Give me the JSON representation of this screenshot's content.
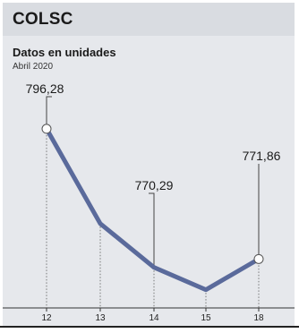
{
  "header": {
    "title": "COLSC"
  },
  "chart_data": {
    "type": "line",
    "title": "Datos en unidades",
    "subtitle": "Abril 2020",
    "xlabel": "",
    "ylabel": "",
    "categories": [
      "12",
      "13",
      "14",
      "15",
      "18"
    ],
    "series": [
      {
        "values": [
          796.28,
          778.5,
          770.29,
          766.1,
          771.86
        ]
      }
    ],
    "data_labels": [
      "796,28",
      "",
      "770,29",
      "",
      "771,86"
    ],
    "ylim": [
      760,
      806
    ],
    "grid": false,
    "line_color": "#5a6a9b",
    "marker_color": "#ffffff"
  }
}
